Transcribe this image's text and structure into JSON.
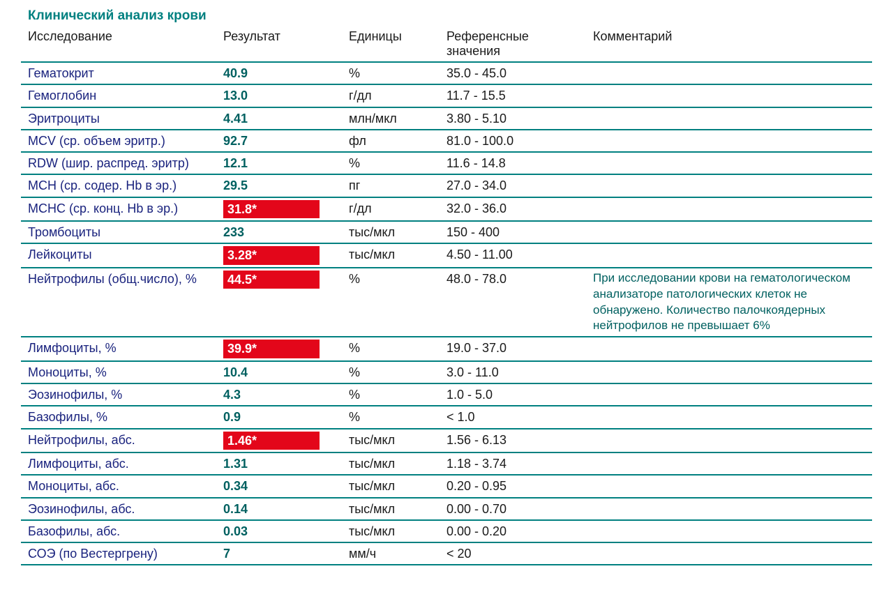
{
  "title": "Клинический анализ крови",
  "columns": {
    "name": "Исследование",
    "result": "Результат",
    "units": "Единицы",
    "ref": "Референсные значения",
    "comment": "Комментарий"
  },
  "colors": {
    "accent": "#008080",
    "name_text": "#1a237e",
    "result_text": "#006060",
    "flag_bg": "#e3061a",
    "flag_text": "#ffffff",
    "border": "#008080",
    "background": "#ffffff"
  },
  "rows": [
    {
      "name": "Гематокрит",
      "result": "40.9",
      "flag": false,
      "units": "%",
      "ref": "35.0 - 45.0",
      "comment": ""
    },
    {
      "name": "Гемоглобин",
      "result": "13.0",
      "flag": false,
      "units": "г/дл",
      "ref": "11.7 - 15.5",
      "comment": ""
    },
    {
      "name": "Эритроциты",
      "result": "4.41",
      "flag": false,
      "units": "млн/мкл",
      "ref": "3.80 - 5.10",
      "comment": ""
    },
    {
      "name": "MCV (ср. объем эритр.)",
      "result": "92.7",
      "flag": false,
      "units": "фл",
      "ref": "81.0 - 100.0",
      "comment": ""
    },
    {
      "name": "RDW (шир. распред. эритр)",
      "result": "12.1",
      "flag": false,
      "units": "%",
      "ref": "11.6 - 14.8",
      "comment": ""
    },
    {
      "name": "MCH (ср. содер. Hb в эр.)",
      "result": "29.5",
      "flag": false,
      "units": "пг",
      "ref": "27.0 - 34.0",
      "comment": ""
    },
    {
      "name": "MCHC (ср. конц. Hb в эр.)",
      "result": "31.8*",
      "flag": true,
      "units": "г/дл",
      "ref": "32.0 - 36.0",
      "comment": ""
    },
    {
      "name": "Тромбоциты",
      "result": "233",
      "flag": false,
      "units": "тыс/мкл",
      "ref": "150 - 400",
      "comment": ""
    },
    {
      "name": "Лейкоциты",
      "result": "3.28*",
      "flag": true,
      "units": "тыс/мкл",
      "ref": "4.50 - 11.00",
      "comment": ""
    },
    {
      "name": "Нейтрофилы (общ.число), %",
      "result": "44.5*",
      "flag": true,
      "units": "%",
      "ref": "48.0 - 78.0",
      "comment": "При исследовании крови на гематологическом анализаторе патологических клеток не обнаружено. Количество палочкоядерных нейтрофилов не превышает 6%"
    },
    {
      "name": "Лимфоциты, %",
      "result": "39.9*",
      "flag": true,
      "units": "%",
      "ref": "19.0 - 37.0",
      "comment": ""
    },
    {
      "name": "Моноциты, %",
      "result": "10.4",
      "flag": false,
      "units": "%",
      "ref": "3.0 - 11.0",
      "comment": ""
    },
    {
      "name": "Эозинофилы, %",
      "result": "4.3",
      "flag": false,
      "units": "%",
      "ref": "1.0 - 5.0",
      "comment": ""
    },
    {
      "name": "Базофилы, %",
      "result": "0.9",
      "flag": false,
      "units": "%",
      "ref": "< 1.0",
      "comment": ""
    },
    {
      "name": "Нейтрофилы, абс.",
      "result": "1.46*",
      "flag": true,
      "units": "тыс/мкл",
      "ref": "1.56 - 6.13",
      "comment": ""
    },
    {
      "name": "Лимфоциты, абс.",
      "result": "1.31",
      "flag": false,
      "units": "тыс/мкл",
      "ref": "1.18 - 3.74",
      "comment": ""
    },
    {
      "name": "Моноциты, абс.",
      "result": "0.34",
      "flag": false,
      "units": "тыс/мкл",
      "ref": "0.20 - 0.95",
      "comment": ""
    },
    {
      "name": "Эозинофилы, абс.",
      "result": "0.14",
      "flag": false,
      "units": "тыс/мкл",
      "ref": "0.00 - 0.70",
      "comment": ""
    },
    {
      "name": "Базофилы, абс.",
      "result": "0.03",
      "flag": false,
      "units": "тыс/мкл",
      "ref": "0.00 - 0.20",
      "comment": ""
    },
    {
      "name": "СОЭ (по Вестергрену)",
      "result": "7",
      "flag": false,
      "units": "мм/ч",
      "ref": "< 20",
      "comment": ""
    }
  ]
}
